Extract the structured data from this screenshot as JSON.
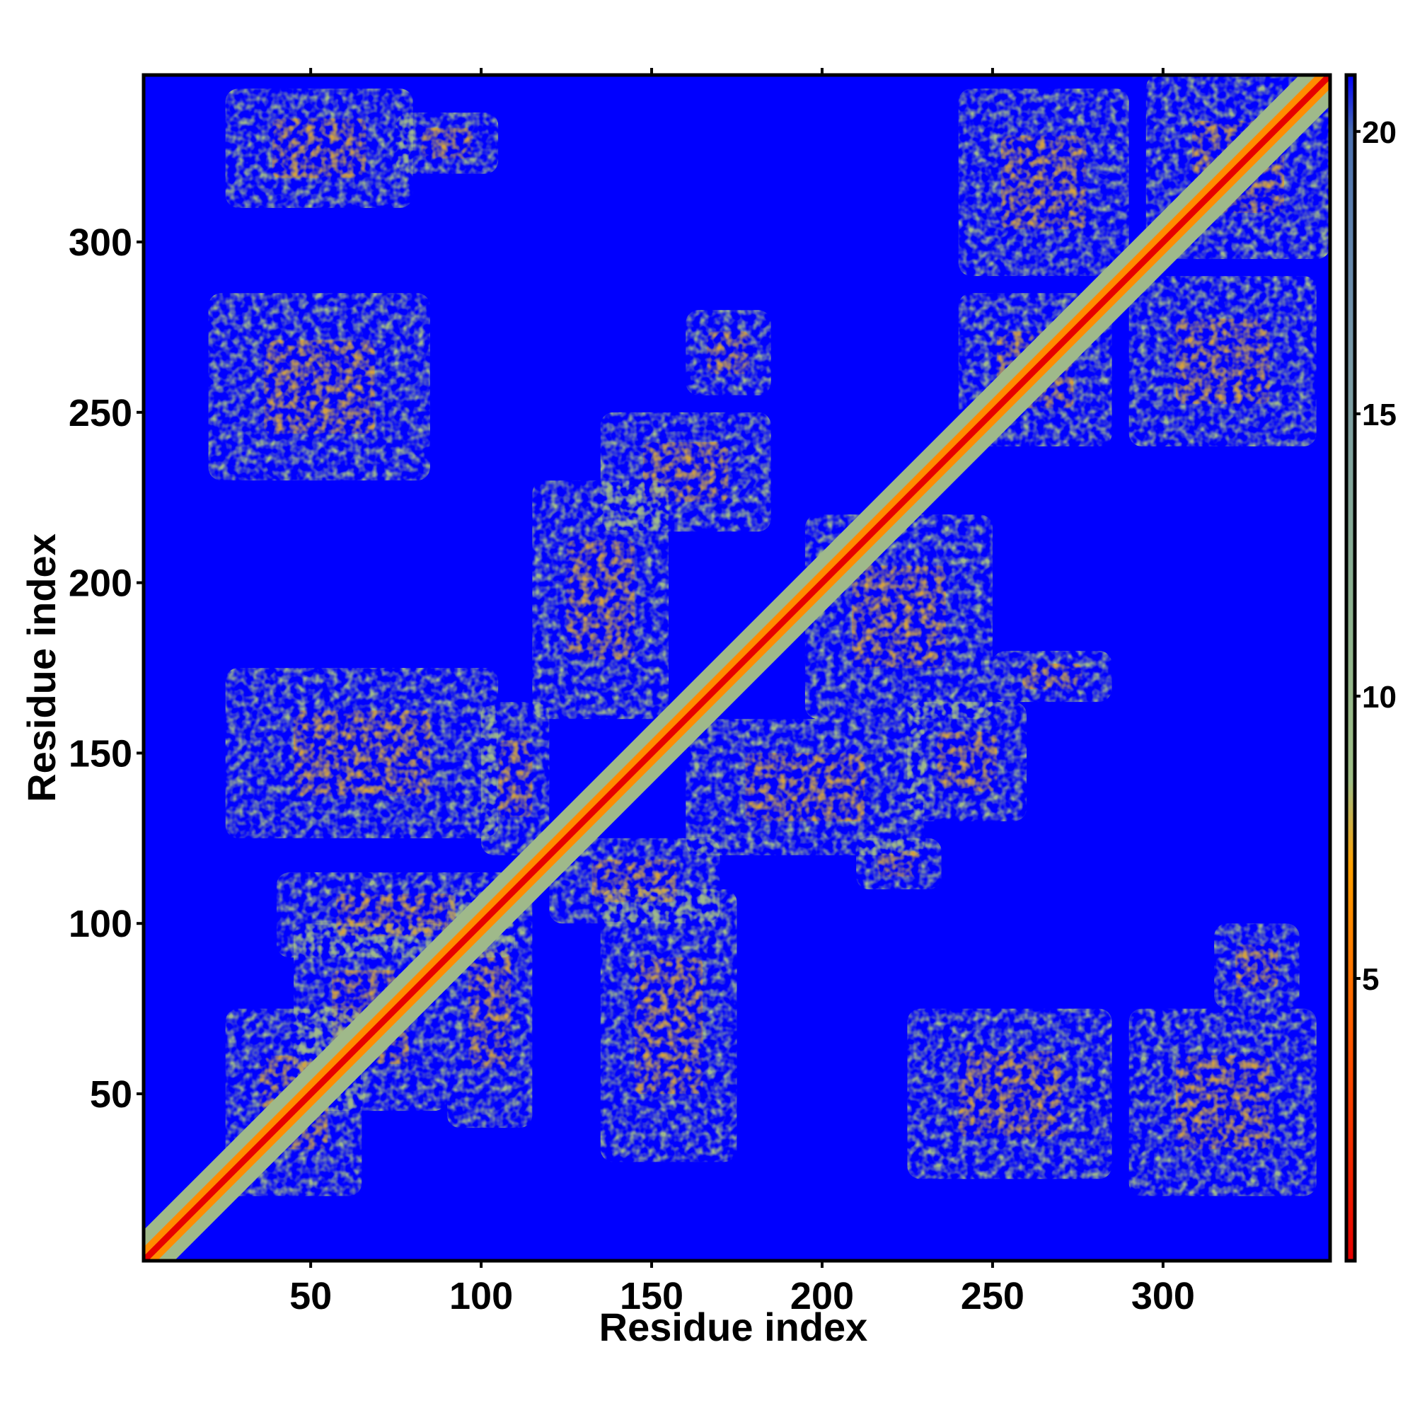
{
  "chart_data": {
    "type": "heatmap",
    "title": "",
    "xlabel": "Residue index",
    "ylabel": "Residue index",
    "xlim": [
      1,
      349
    ],
    "ylim": [
      1,
      349
    ],
    "x_ticks": [
      50,
      100,
      150,
      200,
      250,
      300
    ],
    "y_ticks": [
      50,
      100,
      150,
      200,
      250,
      300
    ],
    "colorbar": {
      "range": [
        0,
        21
      ],
      "ticks": [
        5,
        10,
        15,
        20
      ],
      "stops": [
        {
          "value": 0,
          "color": "#e60000"
        },
        {
          "value": 4,
          "color": "#ff5a00"
        },
        {
          "value": 7,
          "color": "#ffa000"
        },
        {
          "value": 8.5,
          "color": "#9fbf86"
        },
        {
          "value": 12,
          "color": "#8aaf90"
        },
        {
          "value": 16,
          "color": "#7a9aa8"
        },
        {
          "value": 20,
          "color": "#4a6fb0"
        },
        {
          "value": 21,
          "color": "#0000ff"
        }
      ]
    },
    "background_color": "#0000ff",
    "diagonal_color": "#e60000",
    "contact_regions": [
      {
        "x": [
          45,
          90
        ],
        "y": [
          45,
          100
        ]
      },
      {
        "x": [
          25,
          65
        ],
        "y": [
          20,
          75
        ]
      },
      {
        "x": [
          90,
          115
        ],
        "y": [
          40,
          110
        ]
      },
      {
        "x": [
          40,
          110
        ],
        "y": [
          90,
          115
        ]
      },
      {
        "x": [
          25,
          80
        ],
        "y": [
          310,
          345
        ]
      },
      {
        "x": [
          75,
          105
        ],
        "y": [
          320,
          338
        ]
      },
      {
        "x": [
          20,
          85
        ],
        "y": [
          230,
          285
        ]
      },
      {
        "x": [
          25,
          105
        ],
        "y": [
          125,
          175
        ]
      },
      {
        "x": [
          100,
          120
        ],
        "y": [
          120,
          165
        ]
      },
      {
        "x": [
          135,
          175
        ],
        "y": [
          30,
          110
        ]
      },
      {
        "x": [
          120,
          170
        ],
        "y": [
          100,
          125
        ]
      },
      {
        "x": [
          135,
          185
        ],
        "y": [
          215,
          250
        ]
      },
      {
        "x": [
          160,
          185
        ],
        "y": [
          255,
          280
        ]
      },
      {
        "x": [
          115,
          155
        ],
        "y": [
          160,
          230
        ]
      },
      {
        "x": [
          160,
          230
        ],
        "y": [
          120,
          160
        ]
      },
      {
        "x": [
          195,
          250
        ],
        "y": [
          160,
          220
        ]
      },
      {
        "x": [
          210,
          235
        ],
        "y": [
          110,
          125
        ]
      },
      {
        "x": [
          250,
          285
        ],
        "y": [
          165,
          180
        ]
      },
      {
        "x": [
          225,
          260
        ],
        "y": [
          130,
          165
        ]
      },
      {
        "x": [
          225,
          285
        ],
        "y": [
          25,
          75
        ]
      },
      {
        "x": [
          290,
          345
        ],
        "y": [
          20,
          75
        ]
      },
      {
        "x": [
          315,
          340
        ],
        "y": [
          75,
          100
        ]
      },
      {
        "x": [
          240,
          285
        ],
        "y": [
          240,
          285
        ]
      },
      {
        "x": [
          290,
          345
        ],
        "y": [
          240,
          290
        ]
      },
      {
        "x": [
          240,
          290
        ],
        "y": [
          290,
          345
        ]
      },
      {
        "x": [
          295,
          349
        ],
        "y": [
          295,
          349
        ]
      }
    ]
  }
}
